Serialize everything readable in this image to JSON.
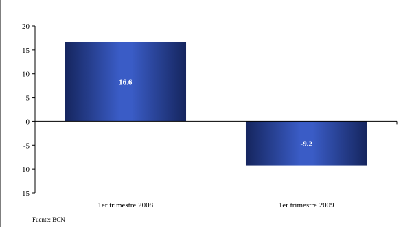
{
  "chart_data": {
    "type": "bar",
    "categories": [
      "1er trimestre 2008",
      "1er trimestre 2009"
    ],
    "series": [
      {
        "values": [
          16.6,
          -9.2
        ]
      }
    ],
    "data_labels": [
      "16.6",
      "-9.2"
    ],
    "ylim": [
      -15,
      20
    ],
    "yticks": [
      20,
      15,
      10,
      5,
      0,
      -5,
      -10,
      -15
    ],
    "ytick_labels": [
      "20",
      "15",
      "10",
      "5",
      "0",
      "-5",
      "-10",
      "-15"
    ],
    "grid": false,
    "legend": "none",
    "colors": {
      "bar_dark": "#15255e",
      "bar_light": "#3a5cc6",
      "axis": "#000000",
      "label_text": "#ffffff"
    }
  },
  "source": "Fuente: BCN"
}
